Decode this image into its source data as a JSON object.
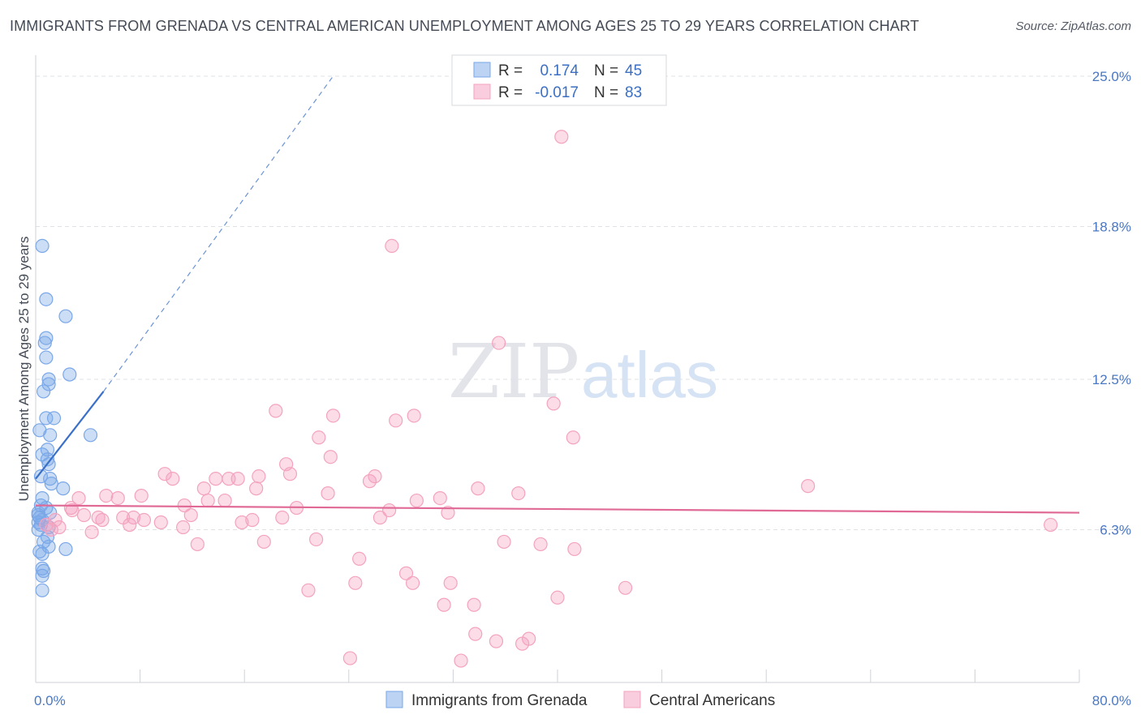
{
  "chart_data": {
    "type": "scatter",
    "title": "IMMIGRANTS FROM GRENADA VS CENTRAL AMERICAN UNEMPLOYMENT AMONG AGES 25 TO 29 YEARS CORRELATION CHART",
    "source": "Source: ZipAtlas.com",
    "xlabel": "",
    "ylabel": "Unemployment Among Ages 25 to 29 years",
    "xlim": [
      0,
      80
    ],
    "ylim": [
      0,
      25.8
    ],
    "x_tick_labels": [
      "0.0%",
      "80.0%"
    ],
    "y_ticks": [
      6.3,
      12.5,
      18.8,
      25.0
    ],
    "y_tick_labels": [
      "6.3%",
      "12.5%",
      "18.8%",
      "25.0%"
    ],
    "grid": true,
    "legend": {
      "position": "top-center",
      "entries": [
        {
          "r_label": "R =",
          "r_value": "0.174",
          "n_label": "N =",
          "n_value": "45"
        },
        {
          "r_label": "R =",
          "r_value": "-0.017",
          "n_label": "N =",
          "n_value": "83"
        }
      ]
    },
    "series": [
      {
        "name": "Immigrants from Grenada",
        "color": "#7aa7e8",
        "line_color": "#3a70c8",
        "trend": {
          "x0": 0.0,
          "y0": 8.4,
          "x1": 5.2,
          "y1": 12.0,
          "dash_x1": 22.8,
          "dash_y1": 25.0
        },
        "points": [
          [
            0.5,
            18.0
          ],
          [
            0.8,
            15.8
          ],
          [
            2.3,
            15.1
          ],
          [
            0.8,
            14.2
          ],
          [
            0.7,
            14.0
          ],
          [
            0.8,
            13.4
          ],
          [
            2.6,
            12.7
          ],
          [
            1.0,
            12.5
          ],
          [
            1.0,
            12.3
          ],
          [
            0.6,
            12.0
          ],
          [
            0.8,
            10.9
          ],
          [
            1.4,
            10.9
          ],
          [
            0.3,
            10.4
          ],
          [
            1.1,
            10.2
          ],
          [
            4.2,
            10.2
          ],
          [
            0.9,
            9.6
          ],
          [
            0.5,
            9.4
          ],
          [
            0.9,
            9.2
          ],
          [
            1.0,
            9.0
          ],
          [
            0.4,
            8.5
          ],
          [
            1.1,
            8.4
          ],
          [
            1.2,
            8.2
          ],
          [
            2.1,
            8.0
          ],
          [
            0.5,
            7.6
          ],
          [
            0.4,
            7.3
          ],
          [
            0.8,
            7.2
          ],
          [
            1.1,
            7.0
          ],
          [
            0.2,
            6.9
          ],
          [
            0.3,
            6.8
          ],
          [
            0.5,
            6.7
          ],
          [
            0.2,
            6.6
          ],
          [
            0.4,
            6.5
          ],
          [
            0.2,
            6.3
          ],
          [
            0.9,
            6.0
          ],
          [
            0.6,
            5.8
          ],
          [
            1.0,
            5.6
          ],
          [
            0.3,
            5.4
          ],
          [
            2.3,
            5.5
          ],
          [
            0.5,
            5.3
          ],
          [
            0.5,
            4.7
          ],
          [
            0.6,
            4.6
          ],
          [
            0.5,
            4.4
          ],
          [
            0.5,
            3.8
          ],
          [
            1.0,
            6.4
          ],
          [
            0.2,
            7.0
          ]
        ]
      },
      {
        "name": "Central Americans",
        "color": "#f4a3bf",
        "line_color": "#e06a95",
        "trend": {
          "x0": 0.0,
          "y0": 7.3,
          "x1": 80.0,
          "y1": 7.0
        },
        "points": [
          [
            40.3,
            22.5
          ],
          [
            27.3,
            18.0
          ],
          [
            35.5,
            14.0
          ],
          [
            39.7,
            11.5
          ],
          [
            18.4,
            11.2
          ],
          [
            22.8,
            11.0
          ],
          [
            29.0,
            11.0
          ],
          [
            27.6,
            10.8
          ],
          [
            41.2,
            10.1
          ],
          [
            21.7,
            10.1
          ],
          [
            22.6,
            9.3
          ],
          [
            19.2,
            9.0
          ],
          [
            9.9,
            8.6
          ],
          [
            19.5,
            8.6
          ],
          [
            10.5,
            8.4
          ],
          [
            13.8,
            8.4
          ],
          [
            15.5,
            8.4
          ],
          [
            26.0,
            8.5
          ],
          [
            14.8,
            8.4
          ],
          [
            17.1,
            8.5
          ],
          [
            25.6,
            8.3
          ],
          [
            33.9,
            8.0
          ],
          [
            16.9,
            8.0
          ],
          [
            12.9,
            8.0
          ],
          [
            22.4,
            7.8
          ],
          [
            37.0,
            7.8
          ],
          [
            59.2,
            8.1
          ],
          [
            5.4,
            7.7
          ],
          [
            6.3,
            7.6
          ],
          [
            8.1,
            7.7
          ],
          [
            3.3,
            7.6
          ],
          [
            13.2,
            7.5
          ],
          [
            14.5,
            7.5
          ],
          [
            29.2,
            7.5
          ],
          [
            31.0,
            7.6
          ],
          [
            11.4,
            7.3
          ],
          [
            20.0,
            7.2
          ],
          [
            27.1,
            7.1
          ],
          [
            2.7,
            7.2
          ],
          [
            31.6,
            7.0
          ],
          [
            11.9,
            6.9
          ],
          [
            3.7,
            6.9
          ],
          [
            6.7,
            6.8
          ],
          [
            2.8,
            7.1
          ],
          [
            5.1,
            6.7
          ],
          [
            7.5,
            6.8
          ],
          [
            8.3,
            6.7
          ],
          [
            18.9,
            6.8
          ],
          [
            26.4,
            6.8
          ],
          [
            4.8,
            6.8
          ],
          [
            15.8,
            6.6
          ],
          [
            16.6,
            6.7
          ],
          [
            9.6,
            6.6
          ],
          [
            1.5,
            6.7
          ],
          [
            7.2,
            6.5
          ],
          [
            11.3,
            6.4
          ],
          [
            1.8,
            6.4
          ],
          [
            4.3,
            6.2
          ],
          [
            1.2,
            6.3
          ],
          [
            0.8,
            6.5
          ],
          [
            21.5,
            5.9
          ],
          [
            17.5,
            5.8
          ],
          [
            35.9,
            5.8
          ],
          [
            38.7,
            5.7
          ],
          [
            41.3,
            5.5
          ],
          [
            12.4,
            5.7
          ],
          [
            24.8,
            5.1
          ],
          [
            28.4,
            4.5
          ],
          [
            24.5,
            4.1
          ],
          [
            28.9,
            4.1
          ],
          [
            31.8,
            4.1
          ],
          [
            45.2,
            3.9
          ],
          [
            20.9,
            3.8
          ],
          [
            40.0,
            3.5
          ],
          [
            31.3,
            3.2
          ],
          [
            33.6,
            3.2
          ],
          [
            33.7,
            2.0
          ],
          [
            35.3,
            1.7
          ],
          [
            37.3,
            1.6
          ],
          [
            37.8,
            1.8
          ],
          [
            24.1,
            1.0
          ],
          [
            32.6,
            0.9
          ],
          [
            77.8,
            6.5
          ]
        ]
      }
    ]
  },
  "bottom_legend": {
    "items": [
      "Immigrants from Grenada",
      "Central Americans"
    ]
  },
  "watermark": {
    "zip": "ZIP",
    "atlas": "atlas"
  }
}
